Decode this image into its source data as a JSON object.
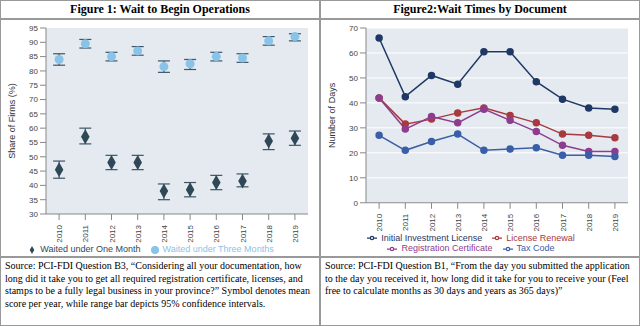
{
  "chart_data": [
    {
      "type": "scatter",
      "title": "Figure 1: Wait to Begin Operations",
      "x": [
        2010,
        2011,
        2012,
        2013,
        2014,
        2015,
        2016,
        2017,
        2018,
        2019
      ],
      "xlim": [
        2009.5,
        2019.5
      ],
      "xticks": [
        2010,
        2011,
        2012,
        2013,
        2014,
        2015,
        2016,
        2017,
        2018,
        2019
      ],
      "ylim": [
        30,
        95
      ],
      "yticks": [
        30,
        35,
        40,
        45,
        50,
        55,
        60,
        65,
        70,
        75,
        80,
        85,
        90,
        95
      ],
      "y_label": "Share of Firms (%)",
      "grid": false,
      "legend": "bottom",
      "series": [
        {
          "name": "Waited under One Month",
          "color": "#2f4858",
          "marker": "diamond",
          "values": [
            45.5,
            57,
            48,
            48,
            38,
            38.5,
            41,
            41.5,
            55.5,
            56.5
          ],
          "ci_low": [
            42.5,
            54.5,
            45.5,
            45.5,
            35,
            36,
            38.5,
            39.5,
            52.5,
            54
          ],
          "ci_high": [
            48.5,
            60,
            50.5,
            50.5,
            40.5,
            41,
            43.5,
            44,
            58,
            59
          ]
        },
        {
          "name": "Waited under Three Months",
          "color": "#89c4e8",
          "marker": "circle",
          "values": [
            84,
            89.5,
            85,
            87,
            81.5,
            82.5,
            85,
            84.5,
            90.5,
            92
          ],
          "ci_low": [
            82,
            88,
            83.5,
            85.5,
            79.5,
            80.5,
            83.5,
            83,
            89,
            90.5
          ],
          "ci_high": [
            86,
            91,
            86.5,
            88.5,
            83.5,
            84,
            86.5,
            86,
            92,
            93
          ]
        }
      ],
      "source": "Source: PCI-FDI Question B3, “Considering all your documentation, how long did it take you to get all required registration certificate, licenses, and stamps to be a fully legal business in your province?” Symbol denotes mean score per year, while range bar depicts 95% confidence intervals."
    },
    {
      "type": "line",
      "title": "Figure2:Wait Times by Document",
      "x": [
        2010,
        2011,
        2012,
        2013,
        2014,
        2015,
        2016,
        2017,
        2018,
        2019
      ],
      "xlim": [
        2009.5,
        2019.5
      ],
      "xticks": [
        2010,
        2011,
        2012,
        2013,
        2014,
        2015,
        2016,
        2017,
        2018,
        2019
      ],
      "ylim": [
        0,
        70
      ],
      "yticks": [
        0,
        10,
        20,
        30,
        40,
        50,
        60,
        70
      ],
      "y_label": "Number of Days",
      "grid": true,
      "legend": "bottom",
      "series": [
        {
          "name": "Initial Investment License",
          "color": "#1f3864",
          "marker": "circle",
          "values": [
            66,
            42.5,
            51,
            47.5,
            60.5,
            60.5,
            48.5,
            41.5,
            38,
            37.5
          ]
        },
        {
          "name": "License Renewal",
          "color": "#a8393f",
          "marker": "circle",
          "values": [
            42,
            31.5,
            33.5,
            36,
            38,
            35,
            32,
            27.5,
            27,
            26
          ]
        },
        {
          "name": "Registration Certificate",
          "color": "#8e3d8e",
          "marker": "circle",
          "values": [
            42,
            29.5,
            34.5,
            32,
            37.5,
            33,
            28.5,
            23,
            20.5,
            20.5
          ]
        },
        {
          "name": "Tax Code",
          "color": "#3b5ea8",
          "marker": "circle",
          "values": [
            27,
            21,
            24.5,
            27.5,
            21,
            21.5,
            22,
            19,
            19,
            18.5
          ]
        }
      ],
      "source": "Source: PCI-FDI Question B1, “From the day you submitted the application to the day you received it, how long did it take for you to receive your (Feel free to calculate months as 30 days and years as 365 days)”"
    }
  ]
}
